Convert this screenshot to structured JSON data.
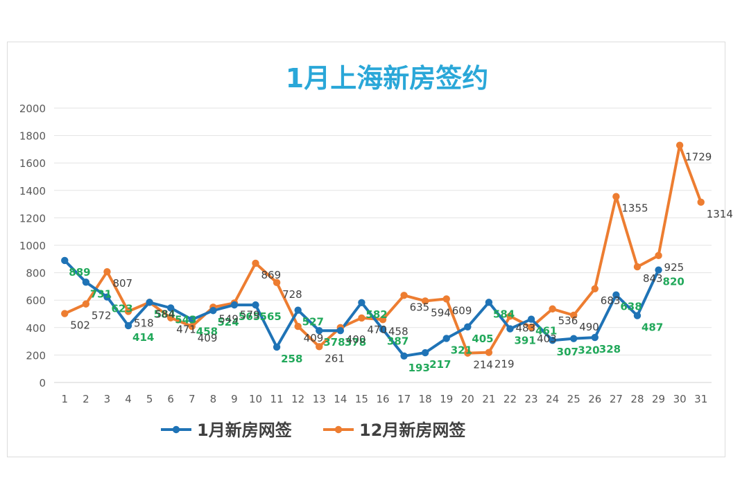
{
  "chart_data": {
    "type": "line",
    "title": "1月上海新房签约",
    "categories": [
      "1",
      "2",
      "3",
      "4",
      "5",
      "6",
      "7",
      "8",
      "9",
      "10",
      "11",
      "12",
      "13",
      "14",
      "15",
      "16",
      "17",
      "18",
      "19",
      "20",
      "21",
      "22",
      "23",
      "24",
      "25",
      "26",
      "27",
      "28",
      "29",
      "30",
      "31"
    ],
    "ylim": [
      0,
      2000
    ],
    "yticks": [
      0,
      200,
      400,
      600,
      800,
      1000,
      1200,
      1400,
      1600,
      1800,
      2000
    ],
    "grid": true,
    "legend": "bottom",
    "series": [
      {
        "name": "1月新房网签",
        "color": "#1F73B6",
        "label_color": "#21A85A",
        "values": [
          889,
          731,
          623,
          414,
          584,
          543,
          458,
          524,
          565,
          565,
          258,
          527,
          378,
          378,
          582,
          387,
          193,
          217,
          321,
          405,
          584,
          391,
          461,
          307,
          320,
          328,
          638,
          487,
          820,
          null,
          null
        ]
      },
      {
        "name": "12月新房网签",
        "color": "#ED7D31",
        "label_color": "#404040",
        "values": [
          502,
          572,
          807,
          518,
          584,
          471,
          409,
          549,
          579,
          869,
          728,
          409,
          261,
          400,
          470,
          458,
          635,
          594,
          609,
          214,
          219,
          483,
          403,
          536,
          490,
          683,
          1355,
          843,
          925,
          1729,
          1314
        ]
      }
    ]
  }
}
